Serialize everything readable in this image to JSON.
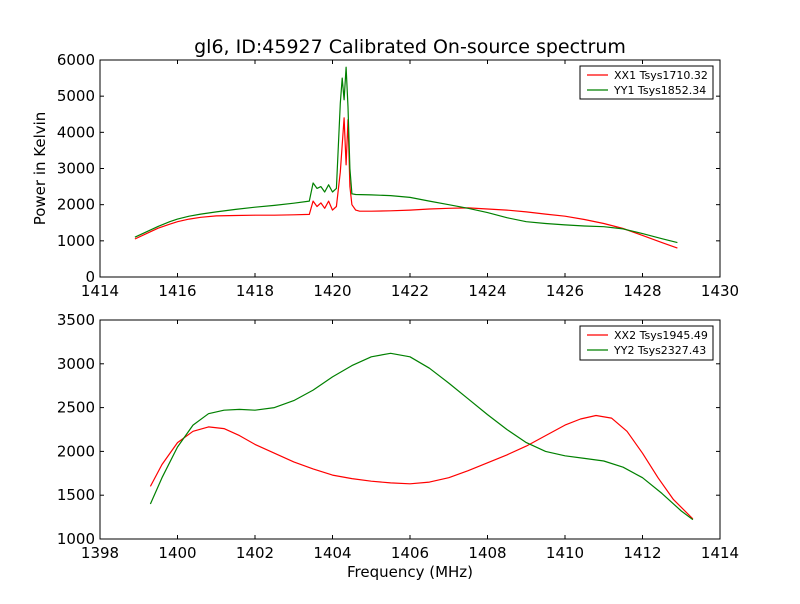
{
  "figure": {
    "title": "gl6, ID:45927 Calibrated On-source spectrum"
  },
  "colors": {
    "red": "#ff0000",
    "green": "#008000",
    "background": "#ffffff",
    "axes": "#000000"
  },
  "chart_data": [
    {
      "type": "line",
      "title": "gl6, ID:45927 Calibrated On-source spectrum",
      "xlabel": "",
      "ylabel": "Power in Kelvin",
      "xlim": [
        1414,
        1430
      ],
      "ylim": [
        0,
        6000
      ],
      "xticks": [
        1414,
        1416,
        1418,
        1420,
        1422,
        1424,
        1426,
        1428,
        1430
      ],
      "yticks": [
        0,
        1000,
        2000,
        3000,
        4000,
        5000,
        6000
      ],
      "legend_position": "top-right",
      "grid": false,
      "series": [
        {
          "name": "XX1 Tsys1710.32",
          "color": "#ff0000",
          "x": [
            1414.9,
            1415.2,
            1415.5,
            1415.8,
            1416.0,
            1416.3,
            1416.6,
            1417.0,
            1417.5,
            1418.0,
            1418.5,
            1419.0,
            1419.4,
            1419.5,
            1419.6,
            1419.7,
            1419.8,
            1419.9,
            1420.0,
            1420.1,
            1420.2,
            1420.3,
            1420.35,
            1420.4,
            1420.45,
            1420.5,
            1420.6,
            1420.7,
            1421.0,
            1421.5,
            1422.0,
            1422.5,
            1423.0,
            1423.5,
            1424.0,
            1424.5,
            1425.0,
            1425.5,
            1426.0,
            1426.5,
            1427.0,
            1427.5,
            1428.0,
            1428.5,
            1428.9
          ],
          "y": [
            1050,
            1200,
            1350,
            1460,
            1530,
            1600,
            1650,
            1690,
            1700,
            1710,
            1710,
            1720,
            1730,
            2100,
            1950,
            2050,
            1900,
            2100,
            1850,
            1950,
            2900,
            4400,
            3100,
            4350,
            2500,
            2000,
            1850,
            1820,
            1820,
            1830,
            1850,
            1880,
            1900,
            1910,
            1880,
            1850,
            1800,
            1740,
            1680,
            1590,
            1480,
            1340,
            1150,
            950,
            800
          ]
        },
        {
          "name": "YY1 Tsys1852.34",
          "color": "#008000",
          "x": [
            1414.9,
            1415.2,
            1415.5,
            1415.8,
            1416.0,
            1416.3,
            1416.6,
            1417.0,
            1417.5,
            1418.0,
            1418.5,
            1419.0,
            1419.4,
            1419.5,
            1419.6,
            1419.7,
            1419.8,
            1419.9,
            1420.0,
            1420.1,
            1420.2,
            1420.25,
            1420.3,
            1420.35,
            1420.4,
            1420.45,
            1420.5,
            1420.6,
            1421.0,
            1421.5,
            1422.0,
            1422.5,
            1423.0,
            1423.5,
            1424.0,
            1424.5,
            1425.0,
            1425.5,
            1426.0,
            1426.5,
            1427.0,
            1427.5,
            1428.0,
            1428.5,
            1428.9
          ],
          "y": [
            1100,
            1250,
            1400,
            1530,
            1600,
            1680,
            1740,
            1800,
            1870,
            1930,
            1980,
            2040,
            2100,
            2600,
            2450,
            2500,
            2350,
            2550,
            2350,
            2450,
            4800,
            5500,
            4900,
            5800,
            4700,
            3000,
            2300,
            2280,
            2270,
            2250,
            2200,
            2100,
            2000,
            1900,
            1780,
            1640,
            1530,
            1480,
            1440,
            1410,
            1390,
            1330,
            1200,
            1060,
            950
          ]
        }
      ]
    },
    {
      "type": "line",
      "title": "",
      "xlabel": "Frequency (MHz)",
      "ylabel": "",
      "xlim": [
        1398,
        1414
      ],
      "ylim": [
        1000,
        3500
      ],
      "xticks": [
        1398,
        1400,
        1402,
        1404,
        1406,
        1408,
        1410,
        1412,
        1414
      ],
      "yticks": [
        1000,
        1500,
        2000,
        2500,
        3000,
        3500
      ],
      "legend_position": "top-right",
      "grid": false,
      "series": [
        {
          "name": "XX2 Tsys1945.49",
          "color": "#ff0000",
          "x": [
            1399.3,
            1399.6,
            1400.0,
            1400.4,
            1400.8,
            1401.2,
            1401.6,
            1402.0,
            1402.5,
            1403.0,
            1403.5,
            1404.0,
            1404.5,
            1405.0,
            1405.5,
            1406.0,
            1406.5,
            1407.0,
            1407.5,
            1408.0,
            1408.5,
            1409.0,
            1409.5,
            1410.0,
            1410.4,
            1410.8,
            1411.2,
            1411.6,
            1412.0,
            1412.4,
            1412.8,
            1413.3
          ],
          "y": [
            1600,
            1850,
            2100,
            2230,
            2280,
            2260,
            2180,
            2080,
            1980,
            1880,
            1800,
            1730,
            1690,
            1660,
            1640,
            1630,
            1650,
            1700,
            1780,
            1870,
            1960,
            2060,
            2180,
            2300,
            2370,
            2410,
            2380,
            2230,
            1980,
            1700,
            1450,
            1230
          ]
        },
        {
          "name": "YY2 Tsys2327.43",
          "color": "#008000",
          "x": [
            1399.3,
            1399.6,
            1400.0,
            1400.4,
            1400.8,
            1401.2,
            1401.6,
            1402.0,
            1402.5,
            1403.0,
            1403.5,
            1404.0,
            1404.5,
            1405.0,
            1405.5,
            1406.0,
            1406.5,
            1407.0,
            1407.5,
            1408.0,
            1408.5,
            1409.0,
            1409.5,
            1410.0,
            1410.5,
            1411.0,
            1411.5,
            1412.0,
            1412.5,
            1413.0,
            1413.3
          ],
          "y": [
            1400,
            1700,
            2050,
            2300,
            2430,
            2470,
            2480,
            2470,
            2500,
            2580,
            2700,
            2850,
            2980,
            3080,
            3120,
            3080,
            2950,
            2780,
            2600,
            2420,
            2250,
            2100,
            2000,
            1950,
            1920,
            1890,
            1820,
            1700,
            1520,
            1320,
            1220
          ]
        }
      ]
    }
  ]
}
